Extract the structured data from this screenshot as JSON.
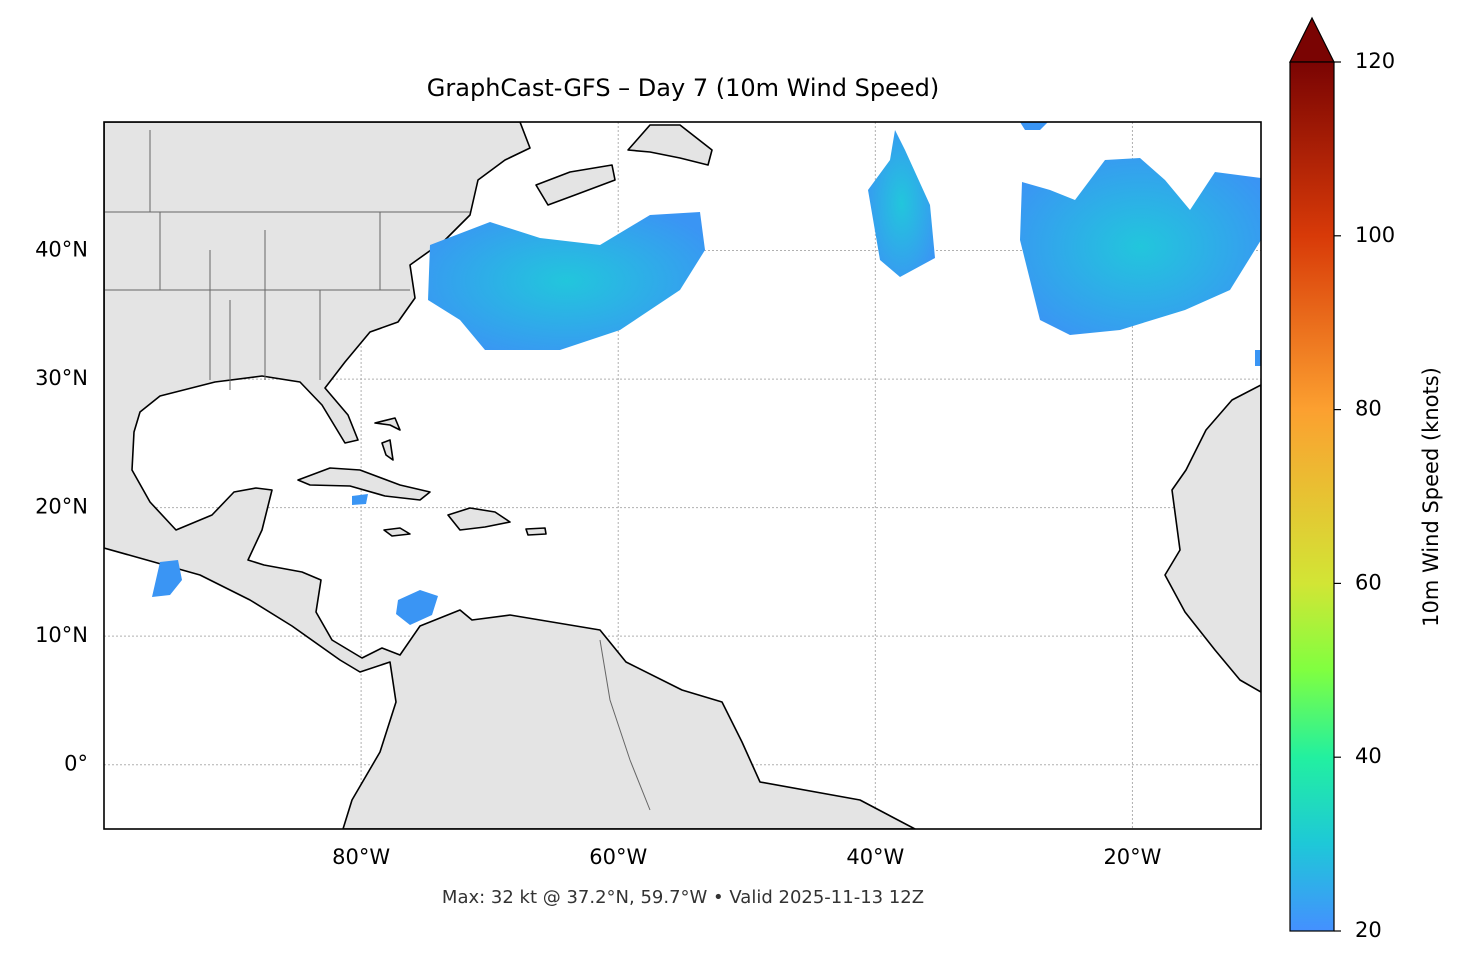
{
  "chart_data": {
    "type": "map",
    "title": "GraphCast-GFS – Day 7 (10m Wind Speed)",
    "xlim": [
      -100,
      -10
    ],
    "ylim": [
      -5,
      50
    ],
    "xticks": [
      {
        "value": -80,
        "label": "80°W"
      },
      {
        "value": -60,
        "label": "60°W"
      },
      {
        "value": -40,
        "label": "40°W"
      },
      {
        "value": -20,
        "label": "20°W"
      }
    ],
    "yticks": [
      {
        "value": 0,
        "label": "0°"
      },
      {
        "value": 10,
        "label": "10°N"
      },
      {
        "value": 20,
        "label": "20°N"
      },
      {
        "value": 30,
        "label": "30°N"
      },
      {
        "value": 40,
        "label": "40°N"
      }
    ],
    "grid": true,
    "colorbar": {
      "label": "10m Wind Speed (knots)",
      "lim": [
        20,
        120
      ],
      "ticks": [
        20,
        40,
        60,
        80,
        100,
        120
      ]
    },
    "footnote": "Max: 32 kt @ 37.2°N, 59.7°W • Valid 2025-11-13 12Z"
  }
}
